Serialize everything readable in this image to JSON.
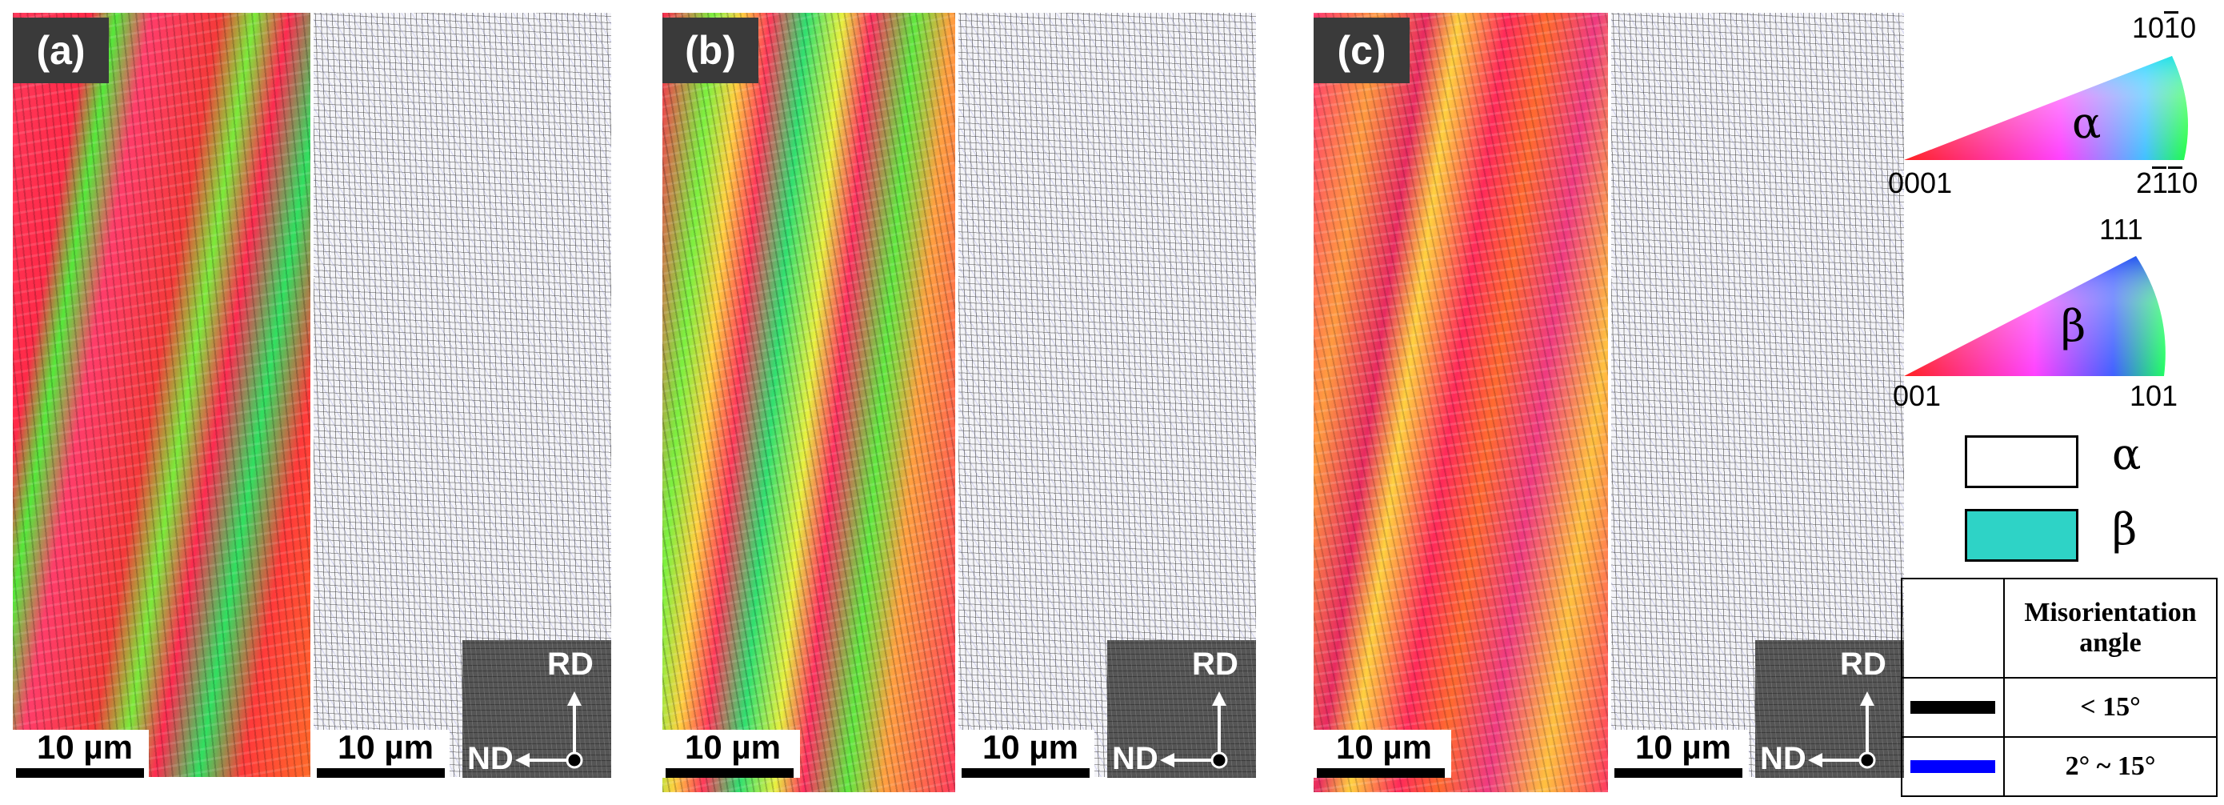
{
  "panels": [
    {
      "label": "(a)",
      "scale_left": "10 µm",
      "scale_right": "10 µm",
      "axis_rd": "RD",
      "axis_nd": "ND"
    },
    {
      "label": "(b)",
      "scale_left": "10 µm",
      "scale_right": "10 µm",
      "axis_rd": "RD",
      "axis_nd": "ND"
    },
    {
      "label": "(c)",
      "scale_left": "10 µm",
      "scale_right": "10 µm",
      "axis_rd": "RD",
      "axis_nd": "ND"
    }
  ],
  "legend": {
    "alpha_ipf": {
      "top": "1010",
      "left": "0001",
      "right": "2110",
      "symbol": "α"
    },
    "beta_ipf": {
      "top": "111",
      "left": "001",
      "right": "101",
      "symbol": "β"
    },
    "phases": [
      {
        "symbol": "α",
        "color": "#ffffff"
      },
      {
        "symbol": "β",
        "color": "#2ed3c6"
      }
    ],
    "misorientation": {
      "header": "Misorientation angle",
      "rows": [
        {
          "color": "#000000",
          "text": "< 15°"
        },
        {
          "color": "#0000ff",
          "text": "2° ~ 15°"
        }
      ]
    }
  }
}
